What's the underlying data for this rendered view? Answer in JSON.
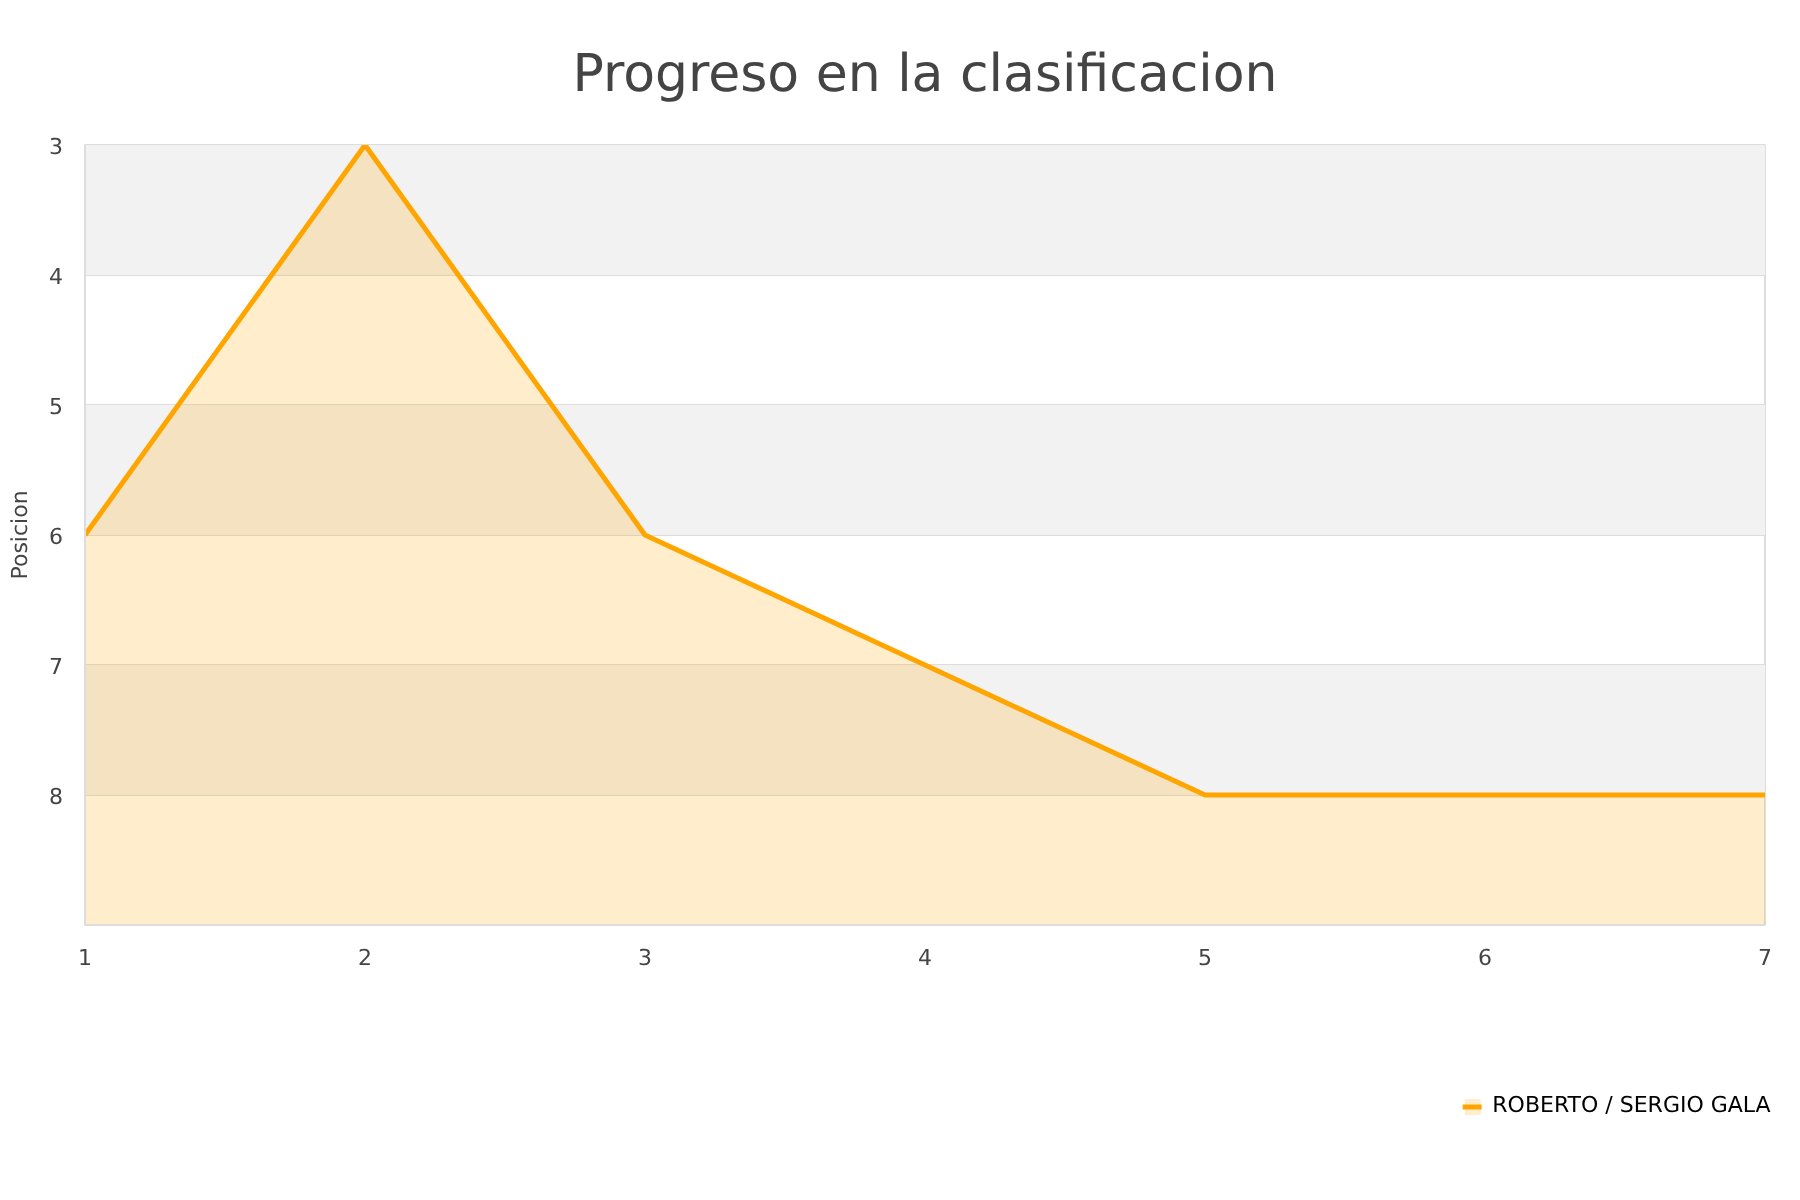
{
  "chart_data": {
    "type": "area",
    "title": "Progreso en la clasificacion",
    "ylabel": "Posicion",
    "x": [
      1,
      2,
      3,
      4,
      5,
      6,
      7
    ],
    "series": [
      {
        "name": "ROBERTO / SERGIO GALA",
        "color": "#ffa500",
        "values": [
          6,
          3,
          6,
          7,
          8,
          8,
          8
        ]
      }
    ],
    "xlim": [
      1,
      7
    ],
    "xticks": [
      1,
      2,
      3,
      4,
      5,
      6,
      7
    ],
    "ylim": [
      9,
      3
    ],
    "yticks": [
      3,
      4,
      5,
      6,
      7,
      8
    ],
    "bands": [
      {
        "axis": "y",
        "from": 3,
        "to": 4,
        "color": "#f2f2f2"
      },
      {
        "axis": "y",
        "from": 5,
        "to": 6,
        "color": "#f2f2f2"
      },
      {
        "axis": "y",
        "from": 7,
        "to": 8,
        "color": "#f2f2f2"
      }
    ],
    "grid": "y",
    "legend": "bottom right"
  }
}
